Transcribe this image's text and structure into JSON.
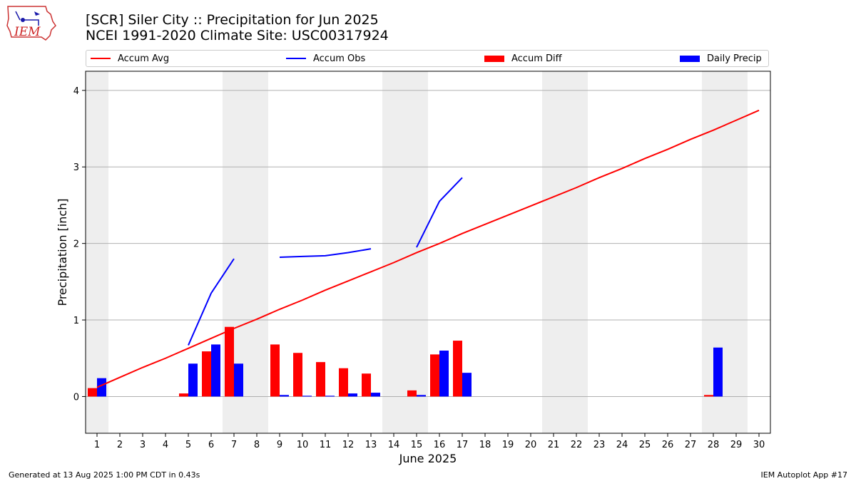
{
  "header": {
    "title_line1": "[SCR] Siler City :: Precipitation for Jun 2025",
    "title_line2": "NCEI 1991-2020 Climate Site: USC00317924"
  },
  "logo": {
    "text": "IEM"
  },
  "footer": {
    "left": "Generated at 13 Aug 2025 1:00 PM CDT in 0.43s",
    "right": "IEM Autoplot App #17"
  },
  "colors": {
    "avg": "#ff0000",
    "obs": "#0000ff",
    "diff": "#ff0000",
    "daily": "#0000ff",
    "weekend": "#eeeeee",
    "grid": "#b0b0b0"
  },
  "chart_data": {
    "type": "bar",
    "xlabel": "June 2025",
    "ylabel": "Precipitation [inch]",
    "ylim": [
      -0.48,
      4.25
    ],
    "yticks": [
      0,
      1,
      2,
      3,
      4
    ],
    "grid": "horizontal",
    "legend_placement": "top",
    "legend": [
      {
        "name": "Accum Avg",
        "kind": "line"
      },
      {
        "name": "Accum Obs",
        "kind": "line"
      },
      {
        "name": "Accum Diff",
        "kind": "bar"
      },
      {
        "name": "Daily Precip",
        "kind": "bar"
      }
    ],
    "days": [
      1,
      2,
      3,
      4,
      5,
      6,
      7,
      8,
      9,
      10,
      11,
      12,
      13,
      14,
      15,
      16,
      17,
      18,
      19,
      20,
      21,
      22,
      23,
      24,
      25,
      26,
      27,
      28,
      29,
      30
    ],
    "weekend_days": [
      1,
      7,
      8,
      14,
      15,
      21,
      22,
      28,
      29
    ],
    "series": [
      {
        "name": "Accum Avg",
        "values": [
          0.12,
          0.25,
          0.38,
          0.5,
          0.63,
          0.76,
          0.89,
          1.01,
          1.14,
          1.26,
          1.39,
          1.51,
          1.63,
          1.75,
          1.88,
          2.0,
          2.13,
          2.25,
          2.37,
          2.49,
          2.61,
          2.73,
          2.86,
          2.98,
          3.11,
          3.23,
          3.36,
          3.48,
          3.61,
          3.74
        ]
      },
      {
        "name": "Accum Obs",
        "values": [
          null,
          null,
          null,
          null,
          0.67,
          1.35,
          1.8,
          null,
          1.82,
          1.83,
          1.84,
          1.88,
          1.93,
          null,
          1.95,
          2.55,
          2.86,
          null,
          null,
          null,
          null,
          null,
          null,
          null,
          null,
          null,
          null,
          null,
          null,
          null
        ]
      },
      {
        "name": "Accum Diff",
        "values": [
          0.11,
          0,
          0,
          0,
          0.04,
          0.59,
          0.91,
          0,
          0.68,
          0.57,
          0.45,
          0.37,
          0.3,
          0,
          0.08,
          0.55,
          0.73,
          0,
          0,
          0,
          0,
          0,
          0,
          0,
          0,
          0,
          0,
          0.02,
          0,
          0
        ]
      },
      {
        "name": "Daily Precip",
        "values": [
          0.24,
          0,
          0,
          0,
          0.43,
          0.68,
          0.43,
          0,
          0.02,
          0.01,
          0.01,
          0.04,
          0.05,
          0,
          0.02,
          0.6,
          0.31,
          0,
          0,
          0,
          0,
          0,
          0,
          0,
          0,
          0,
          0,
          0.64,
          0,
          0
        ]
      }
    ]
  }
}
